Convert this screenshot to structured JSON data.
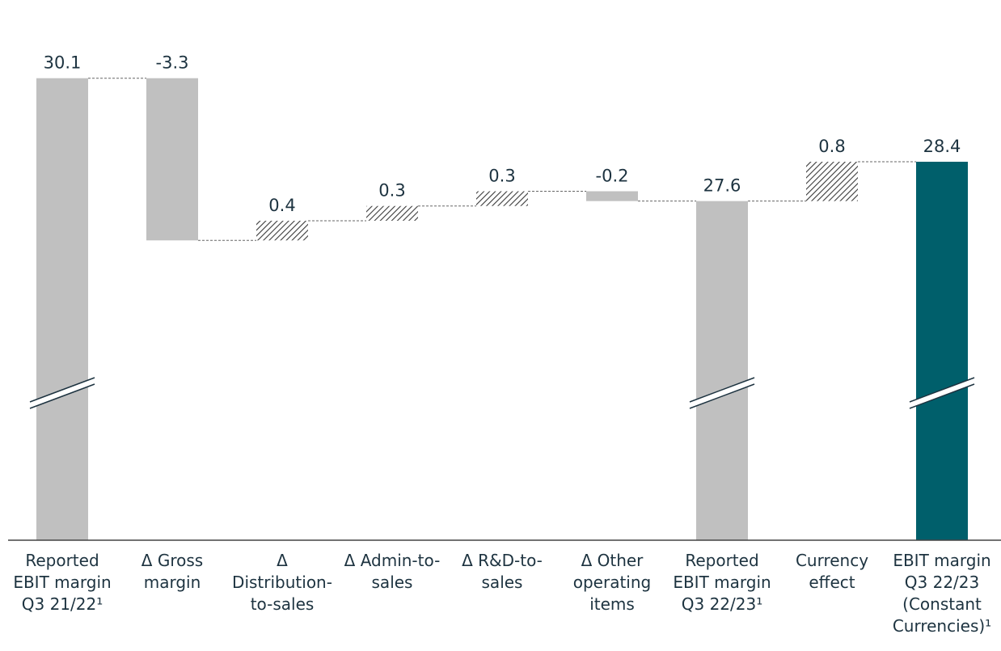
{
  "chart_data": {
    "type": "waterfall",
    "categories": [
      "Reported EBIT margin Q3 21/22¹",
      "Δ Gross margin",
      "Δ Distribution-to-sales",
      "Δ Admin-to-sales",
      "Δ R&D-to-sales",
      "Δ Other operating items",
      "Reported EBIT margin Q3 22/23¹",
      "Currency effect",
      "EBIT margin Q3 22/23 (Constant Currencies)¹"
    ],
    "values": [
      30.1,
      -3.3,
      0.4,
      0.3,
      0.3,
      -0.2,
      27.6,
      0.8,
      28.4
    ],
    "measure": [
      "total",
      "relative",
      "relative",
      "relative",
      "relative",
      "relative",
      "total",
      "relative",
      "total"
    ],
    "colors": [
      "#c0c0c0",
      "#c0c0c0",
      "#c0c0c0",
      "#c0c0c0",
      "#c0c0c0",
      "#c0c0c0",
      "#c0c0c0",
      "#c0c0c0",
      "#005f6b"
    ],
    "positive_pattern": "hatch",
    "ylim": [
      20.7,
      31
    ],
    "axis_break": true
  }
}
